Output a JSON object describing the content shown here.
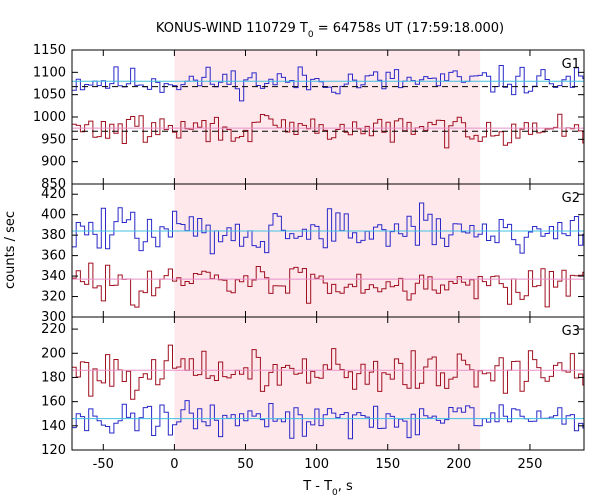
{
  "chart_data": {
    "type": "line",
    "title": {
      "prefix": "KONUS-WIND 110729 T",
      "sub": "0",
      "suffix": " = 64758s UT (17:59:18.000)"
    },
    "xlabel": {
      "prefix": "T - T",
      "sub": "0",
      "suffix": ", s"
    },
    "ylabel": "counts / sec",
    "xlim": [
      -72,
      288
    ],
    "xticks": [
      -50,
      0,
      50,
      100,
      150,
      200,
      250
    ],
    "highlight_interval": [
      0,
      215
    ],
    "colors": {
      "highlight": "#ffe8ec",
      "blue": "#2828c8",
      "red": "#a01020",
      "cyan_fit": "#40c0e0",
      "pink_fit": "#e890c8",
      "background_level": "#000000"
    },
    "bin_width": 2.944,
    "panels": [
      {
        "label": "G1",
        "ylim": [
          850,
          1150
        ],
        "yticks": [
          850,
          900,
          950,
          1000,
          1050,
          1100,
          1150
        ],
        "series": [
          {
            "color_key": "blue",
            "mean": 1080,
            "amplitude": 16,
            "seed": 11,
            "fit": 1080,
            "fit_color_key": "cyan_fit",
            "level": 1068
          },
          {
            "color_key": "red",
            "mean": 973,
            "amplitude": 16,
            "seed": 29,
            "fit": 975,
            "fit_color_key": "pink_fit",
            "level": 968
          }
        ]
      },
      {
        "label": "G2",
        "ylim": [
          300,
          430
        ],
        "yticks": [
          300,
          320,
          340,
          360,
          380,
          400,
          420
        ],
        "series": [
          {
            "color_key": "blue",
            "mean": 384,
            "amplitude": 11,
            "seed": 47,
            "fit": 384,
            "fit_color_key": "cyan_fit"
          },
          {
            "color_key": "red",
            "mean": 334,
            "amplitude": 9,
            "seed": 83,
            "fit": 337,
            "fit_color_key": "pink_fit"
          }
        ]
      },
      {
        "label": "G3",
        "ylim": [
          120,
          230
        ],
        "yticks": [
          120,
          140,
          160,
          180,
          200,
          220
        ],
        "series": [
          {
            "color_key": "red",
            "mean": 185,
            "amplitude": 9,
            "seed": 101,
            "fit": 186,
            "fit_color_key": "pink_fit"
          },
          {
            "color_key": "blue",
            "mean": 146,
            "amplitude": 7,
            "seed": 131,
            "fit": 146,
            "fit_color_key": "cyan_fit"
          }
        ]
      }
    ]
  }
}
